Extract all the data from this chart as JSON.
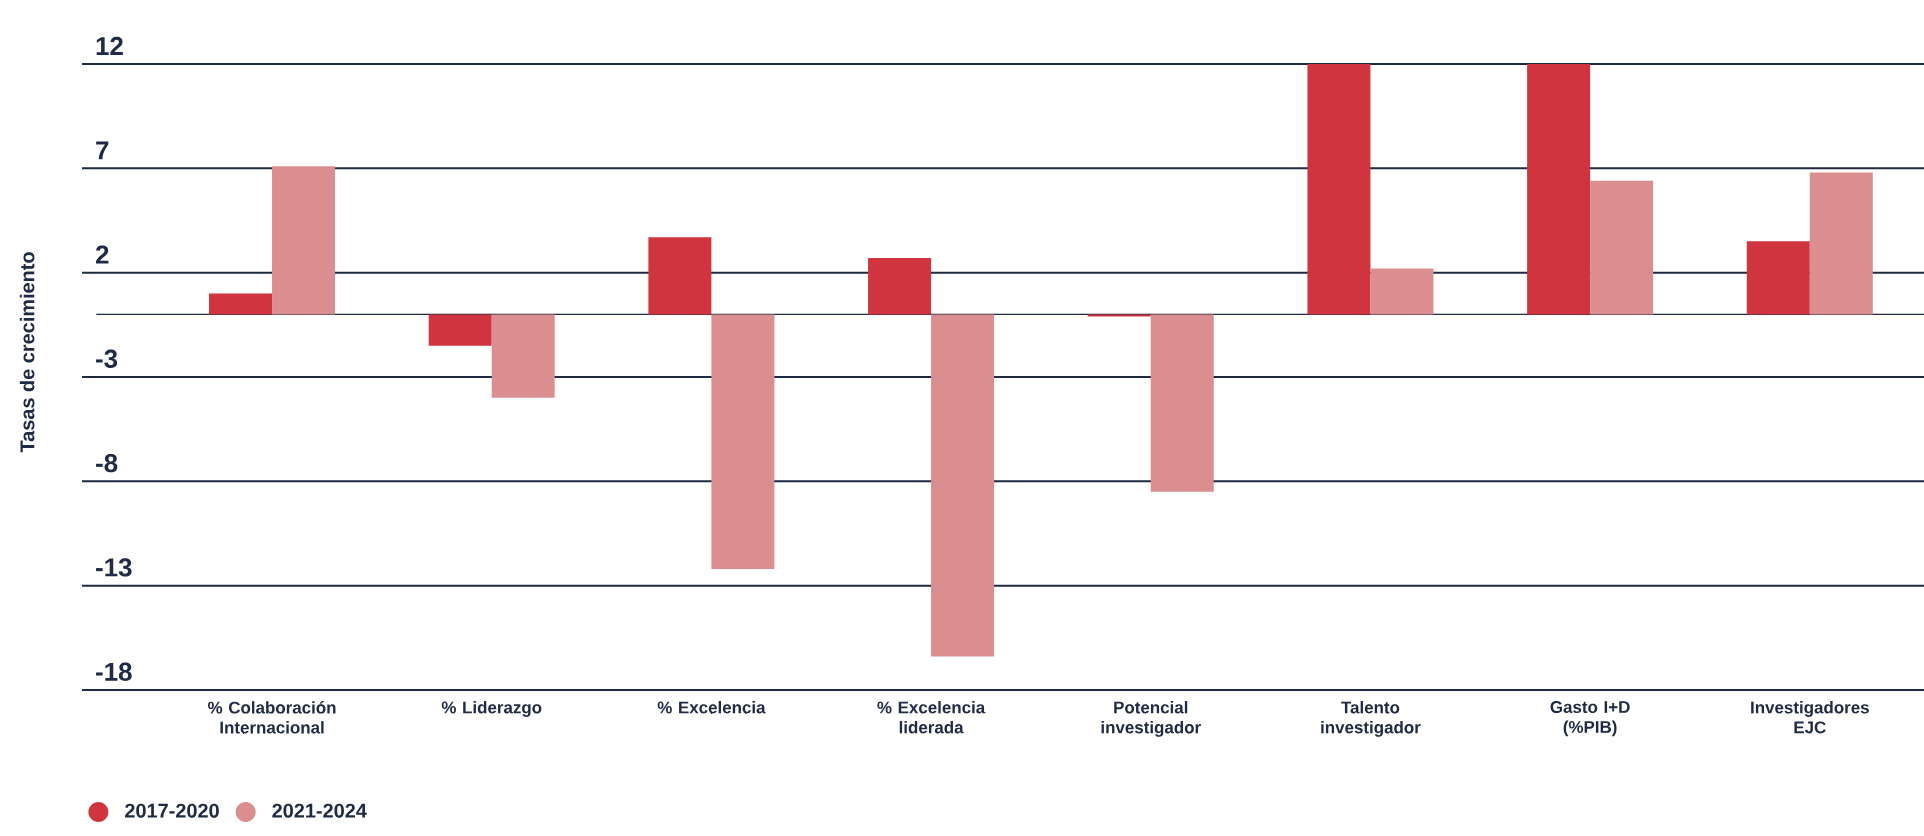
{
  "chart_data": {
    "type": "bar",
    "ylabel": "Tasas de crecimiento",
    "categories": [
      "% Colaboración Internacional",
      "% Liderazgo",
      "% Excelencia",
      "% Excelencia liderada",
      "Potencial investigador",
      "Talento investigador",
      "Gasto I+D (%PIB)",
      "Investigadores EJC"
    ],
    "series": [
      {
        "name": "2017-2020",
        "color": "#d0353f",
        "values": [
          1.0,
          -1.5,
          3.7,
          2.7,
          -0.1,
          12.0,
          12.0,
          3.5
        ]
      },
      {
        "name": "2021-2024",
        "color": "#db8e90",
        "values": [
          7.1,
          -4.0,
          -12.2,
          -16.4,
          -8.5,
          2.2,
          6.4,
          6.8
        ]
      }
    ],
    "ylim": [
      -18,
      12
    ],
    "yticks": [
      -18,
      -13,
      -8,
      -3,
      2,
      7,
      12
    ],
    "grid": "y",
    "legend": "bottom left"
  }
}
